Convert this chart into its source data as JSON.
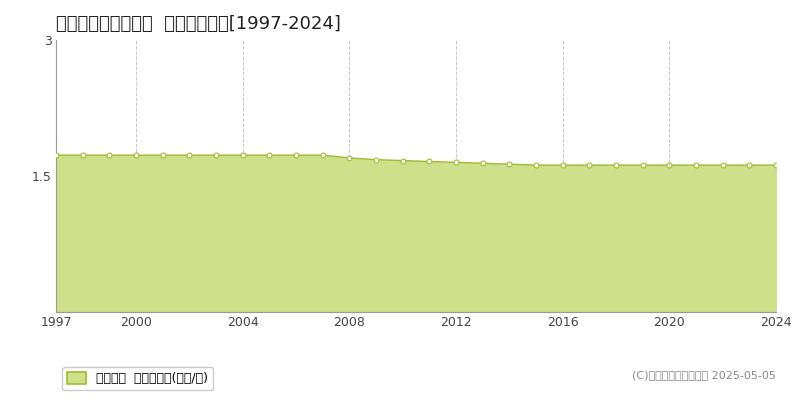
{
  "title": "宮古郡多良間村仲筋  基準地価推移[1997-2024]",
  "years": [
    1997,
    1998,
    1999,
    2000,
    2001,
    2002,
    2003,
    2004,
    2005,
    2006,
    2007,
    2008,
    2009,
    2010,
    2011,
    2012,
    2013,
    2014,
    2015,
    2016,
    2017,
    2018,
    2019,
    2020,
    2021,
    2022,
    2023,
    2024
  ],
  "values": [
    1.73,
    1.73,
    1.73,
    1.73,
    1.73,
    1.73,
    1.73,
    1.73,
    1.73,
    1.73,
    1.73,
    1.7,
    1.68,
    1.67,
    1.66,
    1.65,
    1.64,
    1.63,
    1.62,
    1.62,
    1.62,
    1.62,
    1.62,
    1.62,
    1.62,
    1.62,
    1.62,
    1.62
  ],
  "line_color": "#9bbf2f",
  "fill_color": "#cfe08a",
  "marker_facecolor": "#ffffff",
  "marker_edgecolor": "#9bbf2f",
  "background_color": "#ffffff",
  "grid_color": "#c8c8c8",
  "ylim": [
    0,
    3
  ],
  "yticks": [
    0,
    1.5,
    3
  ],
  "xticks": [
    1997,
    2000,
    2004,
    2008,
    2012,
    2016,
    2020,
    2024
  ],
  "legend_label": "基準地価  平均坪単価(万円/坪)",
  "copyright_text": "(C)土地価格ドットコム 2025-05-05",
  "title_fontsize": 13,
  "axis_fontsize": 9,
  "legend_fontsize": 9,
  "copyright_fontsize": 8
}
